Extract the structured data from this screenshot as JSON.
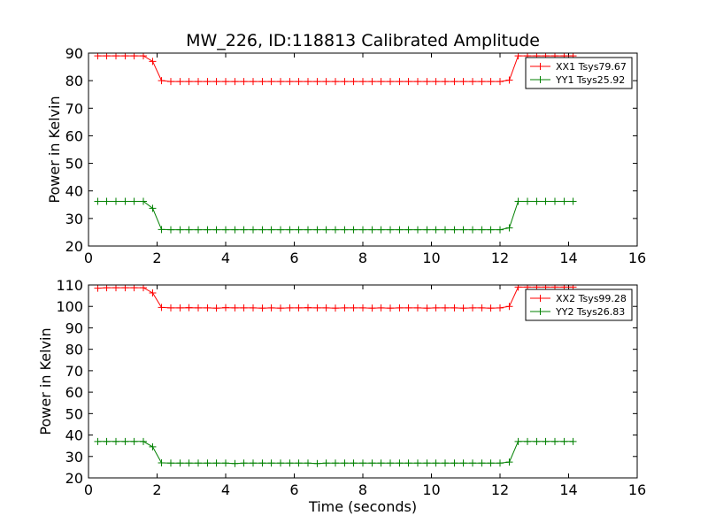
{
  "chart_data": [
    {
      "type": "line",
      "title": "MW_226, ID:118813 Calibrated Amplitude",
      "xlabel": "",
      "ylabel": "Power in Kelvin",
      "xlim": [
        0,
        16
      ],
      "ylim": [
        20,
        90
      ],
      "xticks": [
        0,
        2,
        4,
        6,
        8,
        10,
        12,
        14,
        16
      ],
      "yticks": [
        20,
        30,
        40,
        50,
        60,
        70,
        80,
        90
      ],
      "legend": "top-right",
      "x": [
        0.27,
        0.53,
        0.8,
        1.07,
        1.33,
        1.6,
        1.87,
        2.13,
        2.4,
        2.67,
        2.93,
        3.2,
        3.47,
        3.73,
        4.0,
        4.27,
        4.53,
        4.8,
        5.07,
        5.33,
        5.6,
        5.87,
        6.13,
        6.4,
        6.67,
        6.93,
        7.2,
        7.47,
        7.73,
        8.0,
        8.27,
        8.53,
        8.8,
        9.07,
        9.33,
        9.6,
        9.87,
        10.13,
        10.4,
        10.67,
        10.93,
        11.2,
        11.47,
        11.73,
        12.0,
        12.27,
        12.53,
        12.8,
        13.07,
        13.33,
        13.6,
        13.87,
        14.13
      ],
      "series": [
        {
          "name": "XX1 Tsys79.67",
          "color": "#ff0000",
          "values": [
            89,
            89,
            89,
            89,
            89,
            89,
            87,
            80,
            79.7,
            79.7,
            79.7,
            79.7,
            79.7,
            79.7,
            79.7,
            79.7,
            79.7,
            79.7,
            79.7,
            79.7,
            79.7,
            79.7,
            79.7,
            79.7,
            79.7,
            79.7,
            79.7,
            79.7,
            79.7,
            79.7,
            79.7,
            79.7,
            79.7,
            79.7,
            79.7,
            79.7,
            79.7,
            79.7,
            79.7,
            79.7,
            79.7,
            79.7,
            79.7,
            79.7,
            79.7,
            80.2,
            89,
            89,
            89,
            89,
            89,
            89,
            89
          ]
        },
        {
          "name": "YY1 Tsys25.92",
          "color": "#008000",
          "values": [
            36.2,
            36.2,
            36.2,
            36.2,
            36.2,
            36.2,
            33.7,
            26,
            25.9,
            25.9,
            25.9,
            25.9,
            25.9,
            25.9,
            25.9,
            25.9,
            25.9,
            25.9,
            25.9,
            25.9,
            25.9,
            25.9,
            25.9,
            25.9,
            25.9,
            25.9,
            25.9,
            25.9,
            25.9,
            25.9,
            25.9,
            25.9,
            25.9,
            25.9,
            25.9,
            25.9,
            25.9,
            25.9,
            25.9,
            25.9,
            25.9,
            25.9,
            25.9,
            25.9,
            25.9,
            26.6,
            36.2,
            36.2,
            36.2,
            36.2,
            36.2,
            36.2,
            36.2
          ]
        }
      ]
    },
    {
      "type": "line",
      "title": "",
      "xlabel": "Time (seconds)",
      "ylabel": "Power in Kelvin",
      "xlim": [
        0,
        16
      ],
      "ylim": [
        20,
        110
      ],
      "xticks": [
        0,
        2,
        4,
        6,
        8,
        10,
        12,
        14,
        16
      ],
      "yticks": [
        20,
        30,
        40,
        50,
        60,
        70,
        80,
        90,
        100,
        110
      ],
      "legend": "top-right",
      "x": [
        0.27,
        0.53,
        0.8,
        1.07,
        1.33,
        1.6,
        1.87,
        2.13,
        2.4,
        2.67,
        2.93,
        3.2,
        3.47,
        3.73,
        4.0,
        4.27,
        4.53,
        4.8,
        5.07,
        5.33,
        5.6,
        5.87,
        6.13,
        6.4,
        6.67,
        6.93,
        7.2,
        7.47,
        7.73,
        8.0,
        8.27,
        8.53,
        8.8,
        9.07,
        9.33,
        9.6,
        9.87,
        10.13,
        10.4,
        10.67,
        10.93,
        11.2,
        11.47,
        11.73,
        12.0,
        12.27,
        12.53,
        12.8,
        13.07,
        13.33,
        13.6,
        13.87,
        14.13
      ],
      "series": [
        {
          "name": "XX2 Tsys99.28",
          "color": "#ff0000",
          "values": [
            108.5,
            108.7,
            108.7,
            108.7,
            108.7,
            108.7,
            106.3,
            99.5,
            99.3,
            99.3,
            99.4,
            99.3,
            99.3,
            99.2,
            99.4,
            99.3,
            99.3,
            99.3,
            99.2,
            99.3,
            99.2,
            99.3,
            99.3,
            99.4,
            99.3,
            99.3,
            99.2,
            99.3,
            99.3,
            99.3,
            99.2,
            99.3,
            99.2,
            99.3,
            99.3,
            99.3,
            99.2,
            99.3,
            99.3,
            99.3,
            99.2,
            99.3,
            99.3,
            99.2,
            99.3,
            100,
            109,
            109,
            109,
            109,
            109,
            109,
            109
          ]
        },
        {
          "name": "YY2 Tsys26.83",
          "color": "#008000",
          "values": [
            37,
            37,
            37,
            37,
            37,
            37,
            34.5,
            27,
            26.9,
            26.9,
            26.9,
            26.9,
            26.9,
            26.9,
            26.9,
            26.7,
            26.9,
            26.9,
            26.9,
            26.9,
            26.9,
            26.9,
            26.9,
            26.9,
            26.7,
            26.9,
            26.9,
            26.9,
            26.9,
            26.9,
            26.9,
            26.9,
            26.9,
            26.9,
            26.9,
            26.9,
            26.9,
            26.9,
            26.9,
            26.9,
            26.9,
            26.9,
            26.9,
            26.9,
            26.9,
            27.4,
            37,
            37,
            37,
            37,
            37,
            37,
            37
          ]
        }
      ]
    }
  ]
}
